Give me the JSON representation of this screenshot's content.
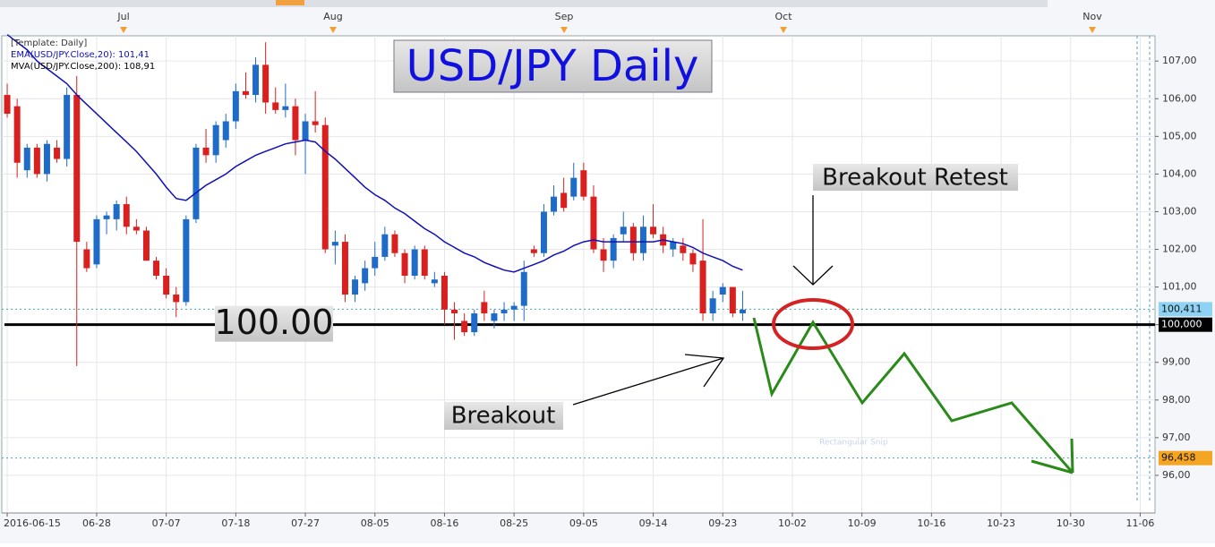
{
  "chart_data": {
    "type": "candlestick",
    "title": "USD/JPY Daily",
    "legend_lines": [
      "[Template: Daily]",
      "EMA(USD/JPY.Close,20): 101,41",
      "MVA(USD/JPY.Close,200): 108,91"
    ],
    "top_axis_labels": [
      "Jul",
      "Aug",
      "Sep",
      "Oct",
      "Nov"
    ],
    "categories": [
      "2016-06-15",
      null,
      null,
      null,
      null,
      null,
      null,
      null,
      null,
      "06-28",
      null,
      null,
      null,
      null,
      null,
      null,
      "07-07",
      null,
      null,
      null,
      null,
      null,
      null,
      "07-18",
      null,
      null,
      null,
      null,
      null,
      null,
      "07-27",
      null,
      null,
      null,
      null,
      null,
      null,
      "08-05",
      null,
      null,
      null,
      null,
      null,
      null,
      "08-16",
      null,
      null,
      null,
      null,
      null,
      null,
      "08-25",
      null,
      null,
      null,
      null,
      null,
      null,
      "09-05",
      null,
      null,
      null,
      null,
      null,
      null,
      "09-14",
      null,
      null,
      null,
      null,
      null,
      null,
      "09-23",
      null,
      null,
      null,
      null,
      null,
      null,
      "10-02",
      null,
      null,
      null,
      null,
      null,
      null,
      "10-09",
      null,
      null,
      null,
      null,
      null,
      null,
      "10-16",
      null,
      null,
      null,
      null,
      null,
      null,
      "10-23",
      null,
      null,
      null,
      null,
      null,
      null,
      "10-30",
      null,
      null,
      null,
      null,
      null,
      null,
      "11-06",
      null
    ],
    "open": [
      106.1,
      105.8,
      104.1,
      104.7,
      104.0,
      104.7,
      104.4,
      106.1,
      102.0,
      101.6,
      102.8,
      102.8,
      103.2,
      102.6,
      102.5,
      101.7,
      101.3,
      100.8,
      100.6,
      102.8,
      104.7,
      104.5,
      104.9,
      105.4,
      106.2,
      106.1,
      106.9,
      105.9,
      105.7,
      105.8,
      104.9,
      105.4,
      105.3,
      102.1,
      102.2,
      100.8,
      101.1,
      101.5,
      101.8,
      102.4,
      101.9,
      101.3,
      102.0,
      101.1,
      101.3,
      100.4,
      100.1,
      99.8,
      100.6,
      100.1,
      100.3,
      100.4,
      100.5,
      102.0,
      101.9,
      103.0,
      103.5,
      103.4,
      104.1,
      103.4,
      102.0,
      101.7,
      102.4,
      102.6,
      101.9,
      102.6,
      102.4,
      102.0,
      102.1,
      101.9,
      101.7,
      100.3,
      100.8,
      101.0,
      100.3,
      null,
      null,
      null,
      null,
      null,
      null,
      null,
      null,
      null,
      null,
      null,
      null,
      null,
      null,
      null,
      null,
      null,
      null,
      null,
      null,
      null,
      null,
      null,
      null,
      null,
      null,
      null,
      null,
      null,
      null,
      null,
      null,
      null,
      null,
      null,
      null,
      null,
      null,
      null,
      null,
      null
    ],
    "high": [
      106.4,
      106.0,
      104.8,
      104.8,
      104.9,
      104.9,
      106.3,
      106.6,
      102.2,
      102.9,
      103.0,
      103.3,
      103.4,
      102.8,
      102.6,
      101.8,
      101.5,
      101.0,
      102.9,
      104.8,
      105.2,
      105.4,
      105.6,
      106.4,
      106.7,
      107.1,
      107.5,
      106.3,
      106.4,
      106.0,
      105.6,
      106.2,
      105.5,
      102.5,
      102.4,
      101.3,
      101.7,
      102.2,
      102.6,
      102.5,
      102.0,
      102.1,
      102.1,
      101.4,
      101.4,
      100.6,
      100.3,
      100.4,
      100.9,
      100.4,
      100.6,
      100.6,
      101.7,
      102.1,
      103.2,
      103.7,
      103.9,
      104.3,
      104.3,
      103.7,
      102.3,
      102.4,
      103.0,
      102.7,
      102.9,
      103.2,
      102.6,
      102.3,
      102.3,
      102.0,
      102.8,
      100.9,
      101.1,
      101.0,
      100.9,
      null,
      null,
      null,
      null,
      null,
      null,
      null,
      null,
      null,
      null,
      null,
      null,
      null,
      null,
      null,
      null,
      null,
      null,
      null,
      null,
      null,
      null,
      null,
      null,
      null,
      null,
      null,
      null,
      null,
      null,
      null,
      null,
      null,
      null,
      null,
      null,
      null,
      null,
      null,
      null,
      null
    ],
    "low": [
      105.5,
      103.9,
      103.9,
      103.9,
      103.8,
      104.3,
      104.2,
      98.9,
      101.4,
      101.5,
      102.4,
      102.5,
      102.4,
      102.4,
      101.7,
      101.2,
      100.7,
      100.2,
      100.5,
      102.7,
      104.3,
      104.3,
      104.7,
      105.2,
      106.0,
      105.9,
      105.6,
      105.6,
      105.5,
      104.5,
      104.0,
      105.1,
      101.9,
      101.6,
      100.6,
      100.6,
      100.9,
      101.3,
      101.7,
      101.8,
      101.1,
      101.2,
      101.2,
      101.0,
      100.0,
      99.6,
      99.7,
      99.7,
      100.1,
      99.9,
      100.1,
      100.1,
      100.1,
      101.8,
      101.8,
      102.9,
      103.0,
      103.3,
      103.3,
      101.9,
      101.4,
      101.5,
      102.2,
      101.7,
      101.7,
      102.3,
      101.9,
      101.8,
      101.7,
      101.4,
      100.1,
      100.1,
      100.6,
      100.2,
      100.1,
      null,
      null,
      null,
      null,
      null,
      null,
      null,
      null,
      null,
      null,
      null,
      null,
      null,
      null,
      null,
      null,
      null,
      null,
      null,
      null,
      null,
      null,
      null,
      null,
      null,
      null,
      null,
      null,
      null,
      null,
      null,
      null,
      null,
      null,
      null,
      null,
      null,
      null,
      null,
      null,
      null
    ],
    "close": [
      105.6,
      104.3,
      104.7,
      104.0,
      104.8,
      104.4,
      106.1,
      102.2,
      101.5,
      102.8,
      102.9,
      103.2,
      102.6,
      102.5,
      101.7,
      101.3,
      100.8,
      100.6,
      102.8,
      104.7,
      104.5,
      105.3,
      105.4,
      106.2,
      106.1,
      106.9,
      105.9,
      105.7,
      105.8,
      104.9,
      105.4,
      105.3,
      102.0,
      102.2,
      100.8,
      101.2,
      101.5,
      101.8,
      102.4,
      101.9,
      101.3,
      102.0,
      101.3,
      101.2,
      100.4,
      100.3,
      99.8,
      100.3,
      100.3,
      100.3,
      100.4,
      100.5,
      101.4,
      101.9,
      103.0,
      103.4,
      103.1,
      103.9,
      103.4,
      102.0,
      101.7,
      102.3,
      102.6,
      101.9,
      102.6,
      102.4,
      102.1,
      102.2,
      101.9,
      101.6,
      100.3,
      100.7,
      101.0,
      100.3,
      100.4,
      null,
      null,
      null,
      null,
      null,
      null,
      null,
      null,
      null,
      null,
      null,
      null,
      null,
      null,
      null,
      null,
      null,
      null,
      null,
      null,
      null,
      null,
      null,
      null,
      null,
      null,
      null,
      null,
      null,
      null,
      null,
      null,
      null,
      null,
      null,
      null,
      null,
      null,
      null,
      null,
      null
    ],
    "up_color": "#1e6cc8",
    "down_color": "#d9201f",
    "series": [
      {
        "name": "EMA(USD/JPY.Close,20)",
        "color": "#1010b8",
        "values": [
          107.7,
          107.5,
          107.3,
          107.0,
          106.8,
          106.6,
          106.4,
          106.1,
          105.85,
          105.6,
          105.35,
          105.1,
          104.85,
          104.6,
          104.3,
          104.0,
          103.65,
          103.35,
          103.3,
          103.5,
          103.7,
          103.85,
          104.0,
          104.2,
          104.35,
          104.5,
          104.6,
          104.7,
          104.8,
          104.85,
          104.9,
          104.85,
          104.6,
          104.4,
          104.15,
          103.9,
          103.65,
          103.45,
          103.3,
          103.1,
          102.95,
          102.75,
          102.55,
          102.4,
          102.2,
          102.05,
          101.9,
          101.8,
          101.65,
          101.55,
          101.45,
          101.4,
          101.5,
          101.6,
          101.7,
          101.85,
          101.95,
          102.1,
          102.2,
          102.25,
          102.2,
          102.2,
          102.2,
          102.2,
          102.2,
          102.2,
          102.25,
          102.2,
          102.15,
          102.05,
          101.9,
          101.8,
          101.7,
          101.55,
          101.45,
          null,
          null,
          null,
          null,
          null,
          null,
          null,
          null,
          null,
          null,
          null,
          null,
          null,
          null,
          null,
          null,
          null,
          null,
          null,
          null,
          null,
          null,
          null,
          null,
          null,
          null,
          null,
          null,
          null,
          null,
          null,
          null,
          null,
          null,
          null,
          null,
          null,
          null,
          null,
          null,
          null
        ]
      }
    ],
    "ylim": [
      95,
      107.67
    ],
    "yticks": [
      {
        "value": 96,
        "label": "96,00"
      },
      {
        "value": 97,
        "label": "97,00"
      },
      {
        "value": 98,
        "label": "98,00"
      },
      {
        "value": 99,
        "label": "99,00"
      },
      {
        "value": 100,
        "label": "100,00"
      },
      {
        "value": 101,
        "label": "101,00"
      },
      {
        "value": 102,
        "label": "102,00"
      },
      {
        "value": 103,
        "label": "103,00"
      },
      {
        "value": 104,
        "label": "104,00"
      },
      {
        "value": 105,
        "label": "105,00"
      },
      {
        "value": 106,
        "label": "106,00"
      },
      {
        "value": 107,
        "label": "107,00"
      }
    ],
    "grid": true,
    "support_line": {
      "value": 100,
      "label": "100.00",
      "axis_label": "100,000",
      "color": "#000000"
    },
    "price_markers": [
      {
        "value": 100.411,
        "label": "100,411",
        "color": "#8fd3f4"
      },
      {
        "value": 96.458,
        "label": "96,458",
        "color": "#f5a524"
      }
    ],
    "annotations": [
      "Breakout Retest",
      "Breakout"
    ],
    "overlay_text": "Rectangular Snip"
  }
}
